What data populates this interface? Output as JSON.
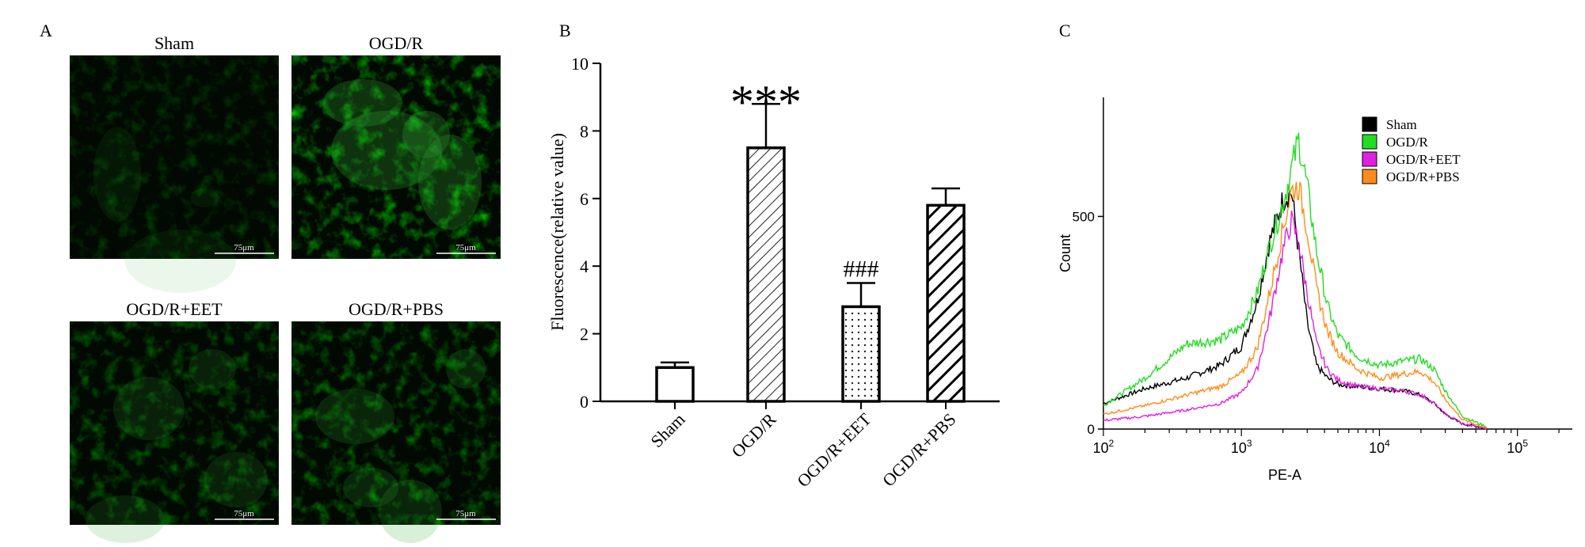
{
  "panels": {
    "a": {
      "letter": "A",
      "images": [
        {
          "label": "Sham",
          "scale_bar": "75μm",
          "intensity": "low"
        },
        {
          "label": "OGD/R",
          "scale_bar": "75μm",
          "intensity": "high"
        },
        {
          "label": "OGD/R+EET",
          "scale_bar": "75μm",
          "intensity": "medium-low"
        },
        {
          "label": "OGD/R+PBS",
          "scale_bar": "75μm",
          "intensity": "medium"
        }
      ]
    },
    "b": {
      "letter": "B"
    },
    "c": {
      "letter": "C"
    }
  },
  "chart_data": [
    {
      "type": "bar",
      "panel": "B",
      "categories": [
        "Sham",
        "OGD/R",
        "OGD/R+EET",
        "OGD/R+PBS"
      ],
      "values": [
        1.0,
        7.5,
        2.8,
        5.8
      ],
      "errors": [
        0.15,
        1.3,
        0.7,
        0.5
      ],
      "annotations": [
        "",
        "***",
        "###",
        ""
      ],
      "ylabel": "Fluorescence(relative value)",
      "xlabel": "",
      "ylim": [
        0,
        10
      ],
      "yticks": [
        "0",
        "2",
        "4",
        "6",
        "8",
        "10"
      ],
      "fills": [
        "open",
        "diagonal-lines-fine",
        "dots",
        "diagonal-lines-bold"
      ]
    },
    {
      "type": "line",
      "panel": "C",
      "xlabel": "PE-A",
      "ylabel": "Count",
      "xscale": "log",
      "xlim": [
        100,
        250000
      ],
      "ylim": [
        0,
        780
      ],
      "xticks": [
        {
          "base": "10",
          "exp": "2"
        },
        {
          "base": "10",
          "exp": "3"
        },
        {
          "base": "10",
          "exp": "4"
        },
        {
          "base": "10",
          "exp": "5"
        }
      ],
      "yticks": [
        "0",
        "500"
      ],
      "legend_position": "top-right",
      "series": [
        {
          "name": "Sham",
          "color": "#000000",
          "x": [
            100,
            200,
            400,
            700,
            1000,
            1300,
            1600,
            2000,
            2300,
            2600,
            3000,
            3500,
            4200,
            5000,
            7000,
            10000,
            15000,
            20000,
            25000,
            30000,
            40000,
            60000
          ],
          "y": [
            60,
            95,
            120,
            150,
            195,
            300,
            440,
            540,
            560,
            420,
            250,
            150,
            120,
            105,
            100,
            95,
            90,
            80,
            60,
            35,
            12,
            2
          ]
        },
        {
          "name": "OGD/R",
          "color": "#22dd22",
          "x": [
            100,
            200,
            400,
            700,
            1000,
            1300,
            1600,
            2000,
            2300,
            2600,
            3000,
            3500,
            4200,
            5000,
            7000,
            10000,
            15000,
            20000,
            25000,
            30000,
            40000,
            60000
          ],
          "y": [
            55,
            120,
            200,
            210,
            240,
            320,
            430,
            530,
            610,
            680,
            570,
            420,
            290,
            220,
            170,
            150,
            160,
            165,
            140,
            90,
            30,
            5
          ]
        },
        {
          "name": "OGD/R+EET",
          "color": "#e020e0",
          "x": [
            100,
            200,
            400,
            700,
            1000,
            1300,
            1600,
            2000,
            2300,
            2600,
            3000,
            3500,
            4200,
            5000,
            7000,
            10000,
            15000,
            20000,
            25000,
            30000,
            40000,
            60000
          ],
          "y": [
            20,
            30,
            45,
            60,
            85,
            140,
            260,
            420,
            490,
            440,
            320,
            200,
            140,
            115,
            100,
            95,
            90,
            80,
            60,
            35,
            12,
            2
          ]
        },
        {
          "name": "OGD/R+PBS",
          "color": "#ff8c1a",
          "x": [
            100,
            200,
            400,
            700,
            1000,
            1300,
            1600,
            2000,
            2300,
            2600,
            3000,
            3500,
            4200,
            5000,
            7000,
            10000,
            15000,
            20000,
            25000,
            30000,
            40000,
            60000
          ],
          "y": [
            35,
            55,
            80,
            100,
            130,
            190,
            320,
            470,
            560,
            570,
            470,
            330,
            230,
            180,
            140,
            120,
            130,
            135,
            110,
            70,
            22,
            3
          ]
        }
      ]
    }
  ]
}
